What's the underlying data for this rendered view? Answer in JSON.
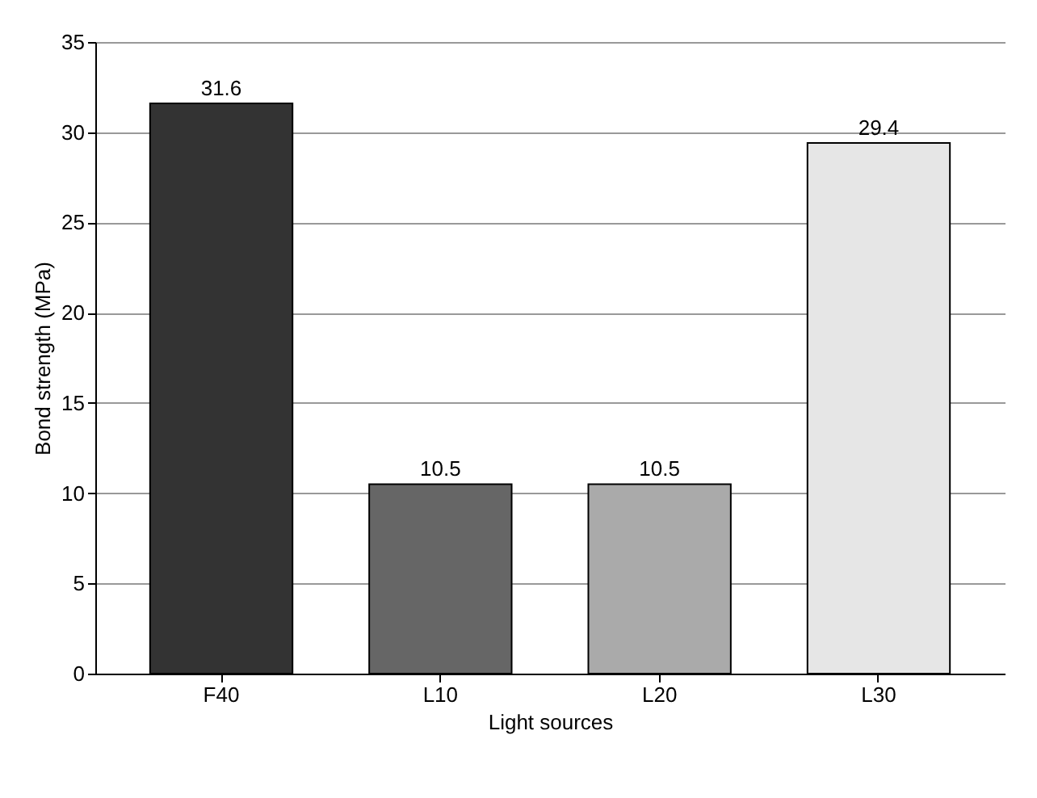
{
  "chart_data": {
    "type": "bar",
    "xlabel": "Light sources",
    "ylabel": "Bond strength (MPa)",
    "categories": [
      "F40",
      "L10",
      "L20",
      "L30"
    ],
    "values": [
      31.6,
      10.5,
      10.5,
      29.4
    ],
    "colors": [
      "#333333",
      "#666666",
      "#aaaaaa",
      "#e6e6e6"
    ],
    "ylim": [
      0,
      35
    ],
    "yticks": [
      0,
      5,
      10,
      15,
      20,
      25,
      30,
      35
    ],
    "grid": "y",
    "data_labels": true
  }
}
